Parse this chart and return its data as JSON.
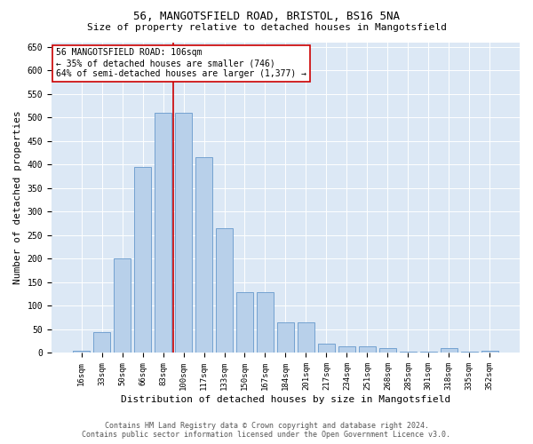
{
  "title1": "56, MANGOTSFIELD ROAD, BRISTOL, BS16 5NA",
  "title2": "Size of property relative to detached houses in Mangotsfield",
  "xlabel": "Distribution of detached houses by size in Mangotsfield",
  "ylabel": "Number of detached properties",
  "footer1": "Contains HM Land Registry data © Crown copyright and database right 2024.",
  "footer2": "Contains public sector information licensed under the Open Government Licence v3.0.",
  "annotation_line1": "56 MANGOTSFIELD ROAD: 106sqm",
  "annotation_line2": "← 35% of detached houses are smaller (746)",
  "annotation_line3": "64% of semi-detached houses are larger (1,377) →",
  "bar_color": "#b8d0ea",
  "bar_edge_color": "#6699cc",
  "property_line_color": "#cc0000",
  "annotation_box_color": "#cc0000",
  "background_color": "#dce8f5",
  "categories": [
    "16sqm",
    "33sqm",
    "50sqm",
    "66sqm",
    "83sqm",
    "100sqm",
    "117sqm",
    "133sqm",
    "150sqm",
    "167sqm",
    "184sqm",
    "201sqm",
    "217sqm",
    "234sqm",
    "251sqm",
    "268sqm",
    "285sqm",
    "301sqm",
    "318sqm",
    "335sqm",
    "352sqm"
  ],
  "values": [
    5,
    45,
    200,
    395,
    510,
    510,
    415,
    265,
    130,
    130,
    65,
    65,
    20,
    15,
    15,
    10,
    2,
    2,
    10,
    2,
    5
  ],
  "ylim": [
    0,
    660
  ],
  "yticks": [
    0,
    50,
    100,
    150,
    200,
    250,
    300,
    350,
    400,
    450,
    500,
    550,
    600,
    650
  ],
  "property_line_x": 4.5,
  "fig_width": 6.0,
  "fig_height": 5.0,
  "dpi": 100
}
